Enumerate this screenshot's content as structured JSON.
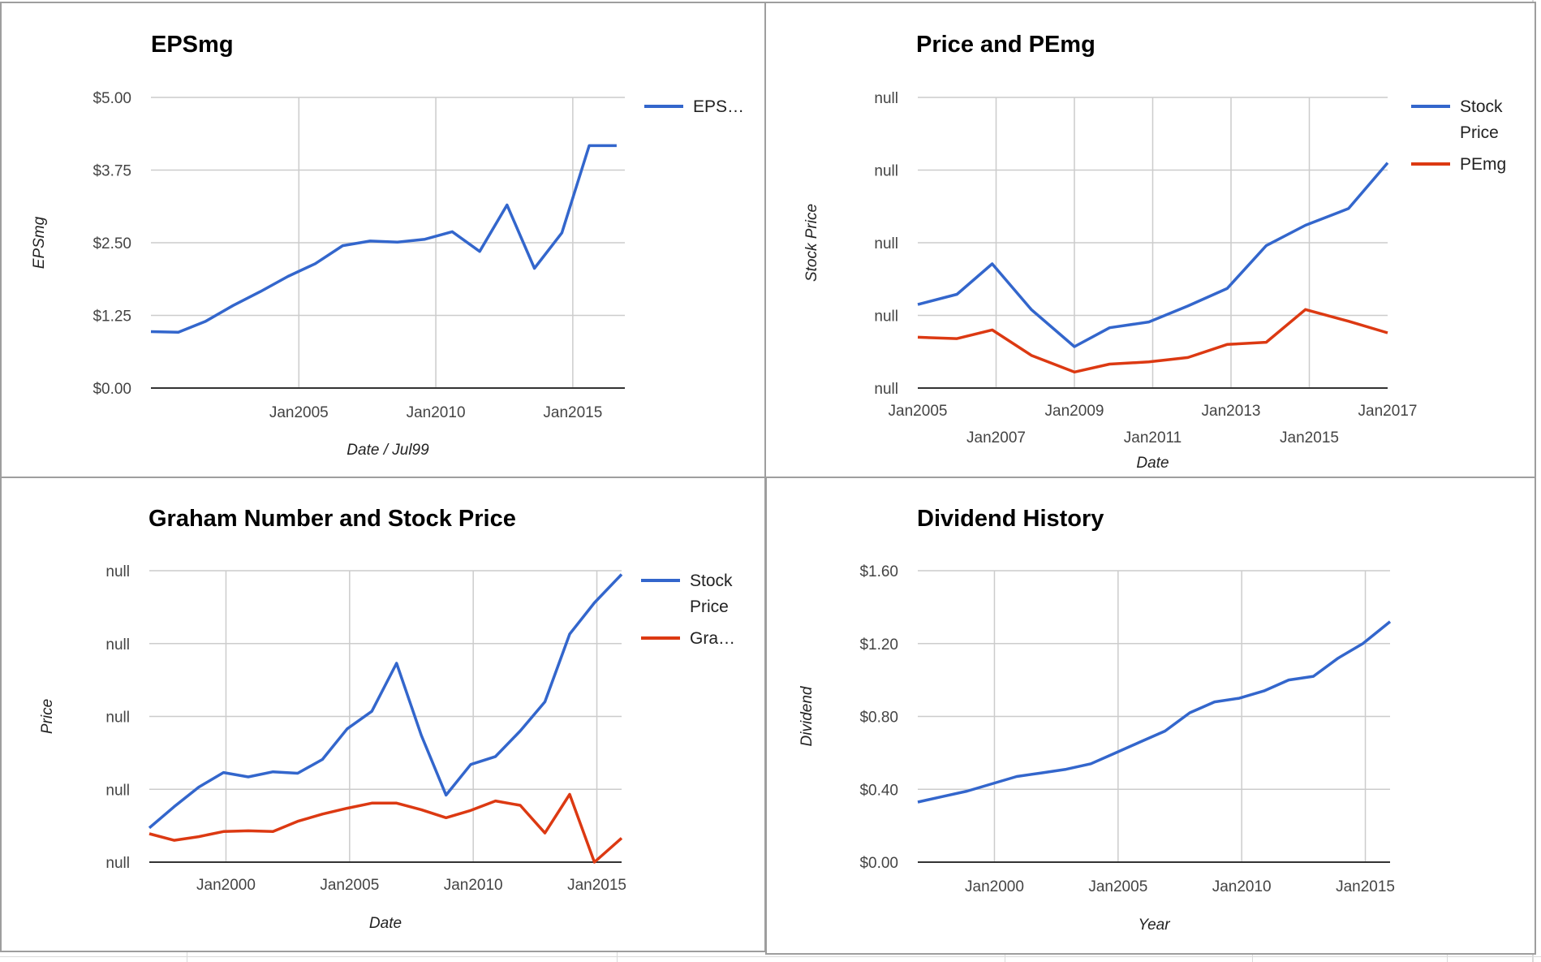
{
  "colors": {
    "blue": "#3366cc",
    "red": "#dc3912",
    "grid": "#cccccc",
    "axis": "#333333",
    "text": "#444444"
  },
  "chart_data": [
    {
      "id": "epsmg",
      "type": "line",
      "title": "EPSmg",
      "xlabel": "Date / Jul99",
      "ylabel": "EPSmg",
      "x_type": "date",
      "xlim": [
        1999.6,
        2016.9
      ],
      "ylim": [
        0,
        5
      ],
      "y_ticks": [
        "$0.00",
        "$1.25",
        "$2.50",
        "$3.75",
        "$5.00"
      ],
      "x_ticks": [
        {
          "x": 2005.0,
          "label": "Jan2005"
        },
        {
          "x": 2010.0,
          "label": "Jan2010"
        },
        {
          "x": 2015.0,
          "label": "Jan2015"
        }
      ],
      "legend_position": "right",
      "series": [
        {
          "name": "EPS…",
          "color": "#3366cc",
          "x": [
            1999.6,
            2000.6,
            2001.6,
            2002.6,
            2003.6,
            2004.6,
            2005.6,
            2006.6,
            2007.6,
            2008.6,
            2009.6,
            2010.6,
            2011.6,
            2012.6,
            2013.6,
            2014.6,
            2015.6,
            2016.6
          ],
          "y": [
            0.97,
            0.96,
            1.15,
            1.42,
            1.66,
            1.92,
            2.14,
            2.45,
            2.53,
            2.51,
            2.56,
            2.69,
            2.35,
            3.15,
            2.06,
            2.67,
            4.17,
            4.17
          ]
        }
      ]
    },
    {
      "id": "price-pemg",
      "type": "line",
      "title": "Price and PEmg",
      "xlabel": "Date",
      "ylabel": "Stock Price",
      "x_type": "date",
      "xlim": [
        2005.0,
        2017.0
      ],
      "ylim": [
        0,
        4
      ],
      "y_ticks": [
        "null",
        "null",
        "null",
        "null",
        "null"
      ],
      "x_ticks": [
        {
          "x": 2005.0,
          "label": "Jan2005",
          "row": 0
        },
        {
          "x": 2007.0,
          "label": "Jan2007",
          "row": 1
        },
        {
          "x": 2009.0,
          "label": "Jan2009",
          "row": 0
        },
        {
          "x": 2011.0,
          "label": "Jan2011",
          "row": 1
        },
        {
          "x": 2013.0,
          "label": "Jan2013",
          "row": 0
        },
        {
          "x": 2015.0,
          "label": "Jan2015",
          "row": 1
        },
        {
          "x": 2017.0,
          "label": "Jan2017",
          "row": 0
        }
      ],
      "legend_position": "right",
      "series": [
        {
          "name": "Stock Price",
          "color": "#3366cc",
          "x": [
            2005.0,
            2006.0,
            2006.9,
            2007.9,
            2009.0,
            2009.9,
            2010.9,
            2011.9,
            2012.9,
            2013.9,
            2014.9,
            2016.0,
            2017.0
          ],
          "y": [
            1.15,
            1.29,
            1.71,
            1.08,
            0.57,
            0.83,
            0.91,
            1.13,
            1.37,
            1.96,
            2.24,
            2.47,
            3.1
          ]
        },
        {
          "name": "PEmg",
          "color": "#dc3912",
          "x": [
            2005.0,
            2006.0,
            2006.9,
            2007.9,
            2009.0,
            2009.9,
            2010.9,
            2011.9,
            2012.9,
            2013.9,
            2014.9,
            2016.0,
            2017.0
          ],
          "y": [
            0.7,
            0.68,
            0.8,
            0.45,
            0.22,
            0.33,
            0.36,
            0.42,
            0.6,
            0.63,
            1.08,
            0.92,
            0.76
          ]
        }
      ]
    },
    {
      "id": "graham",
      "type": "line",
      "title": "Graham Number and Stock Price",
      "xlabel": "Date",
      "ylabel": "Price",
      "x_type": "date",
      "xlim": [
        1996.9,
        2016.0
      ],
      "ylim": [
        0,
        4
      ],
      "y_ticks": [
        "null",
        "null",
        "null",
        "null",
        "null"
      ],
      "x_ticks": [
        {
          "x": 2000.0,
          "label": "Jan2000"
        },
        {
          "x": 2005.0,
          "label": "Jan2005"
        },
        {
          "x": 2010.0,
          "label": "Jan2010"
        },
        {
          "x": 2015.0,
          "label": "Jan2015"
        }
      ],
      "legend_position": "right",
      "series": [
        {
          "name": "Stock Price",
          "color": "#3366cc",
          "x": [
            1996.9,
            1997.9,
            1998.9,
            1999.9,
            2000.9,
            2001.9,
            2002.9,
            2003.9,
            2004.9,
            2005.9,
            2006.9,
            2007.9,
            2008.9,
            2009.9,
            2010.9,
            2011.9,
            2012.9,
            2013.9,
            2014.9,
            2016.0
          ],
          "y": [
            0.47,
            0.76,
            1.03,
            1.23,
            1.17,
            1.24,
            1.22,
            1.41,
            1.83,
            2.07,
            2.73,
            1.74,
            0.92,
            1.34,
            1.45,
            1.8,
            2.2,
            3.13,
            3.56,
            3.95
          ]
        },
        {
          "name": "Gra…",
          "color": "#dc3912",
          "x": [
            1996.9,
            1997.9,
            1998.9,
            1999.9,
            2000.9,
            2001.9,
            2002.9,
            2003.9,
            2004.9,
            2005.9,
            2006.9,
            2007.9,
            2008.9,
            2009.9,
            2010.9,
            2011.9,
            2012.9,
            2013.9,
            2014.9,
            2016.0
          ],
          "y": [
            0.39,
            0.3,
            0.35,
            0.42,
            0.43,
            0.42,
            0.56,
            0.66,
            0.74,
            0.81,
            0.81,
            0.72,
            0.61,
            0.71,
            0.84,
            0.78,
            0.4,
            0.93,
            0.0,
            0.33
          ]
        }
      ]
    },
    {
      "id": "dividend",
      "type": "line",
      "title": "Dividend History",
      "xlabel": "Year",
      "ylabel": "Dividend",
      "x_type": "date",
      "xlim": [
        1996.9,
        2016.0
      ],
      "ylim": [
        0,
        1.6
      ],
      "y_ticks": [
        "$0.00",
        "$0.40",
        "$0.80",
        "$1.20",
        "$1.60"
      ],
      "x_ticks": [
        {
          "x": 2000.0,
          "label": "Jan2000"
        },
        {
          "x": 2005.0,
          "label": "Jan2005"
        },
        {
          "x": 2010.0,
          "label": "Jan2010"
        },
        {
          "x": 2015.0,
          "label": "Jan2015"
        }
      ],
      "legend_position": "none",
      "series": [
        {
          "name": "",
          "color": "#3366cc",
          "x": [
            1996.9,
            1997.9,
            1998.9,
            1999.9,
            2000.9,
            2001.9,
            2002.9,
            2003.9,
            2004.9,
            2005.9,
            2006.9,
            2007.9,
            2008.9,
            2009.9,
            2010.9,
            2011.9,
            2012.9,
            2013.9,
            2014.9,
            2016.0
          ],
          "y": [
            0.33,
            0.36,
            0.39,
            0.43,
            0.47,
            0.49,
            0.51,
            0.54,
            0.6,
            0.66,
            0.72,
            0.82,
            0.88,
            0.9,
            0.94,
            1.0,
            1.02,
            1.12,
            1.2,
            1.32
          ]
        }
      ]
    }
  ]
}
